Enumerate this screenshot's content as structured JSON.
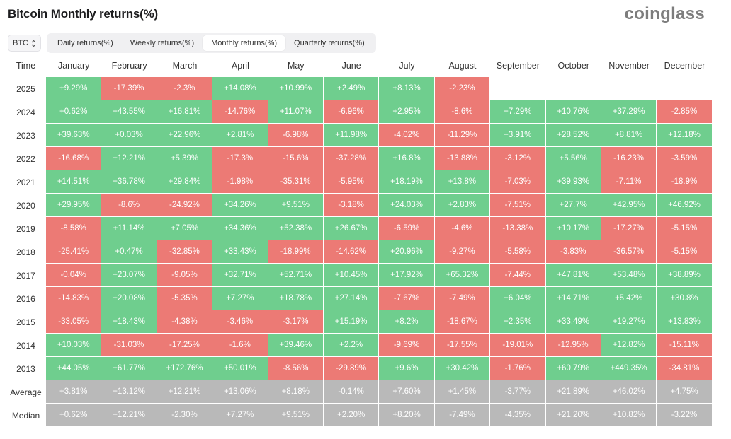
{
  "header": {
    "title": "Bitcoin Monthly returns(%)",
    "brand": "coinglass"
  },
  "asset_select": {
    "value": "BTC",
    "icon": "chevron-updown-icon"
  },
  "tabs": [
    {
      "label": "Daily returns(%)",
      "active": false
    },
    {
      "label": "Weekly returns(%)",
      "active": false
    },
    {
      "label": "Monthly returns(%)",
      "active": true
    },
    {
      "label": "Quarterly returns(%)",
      "active": false
    }
  ],
  "colors": {
    "positive": "#6fce8e",
    "negative": "#ec7a75",
    "stat": "#b9b9b9"
  },
  "table": {
    "corner": "Time",
    "columns": [
      "January",
      "February",
      "March",
      "April",
      "May",
      "June",
      "July",
      "August",
      "September",
      "October",
      "November",
      "December"
    ],
    "rows": [
      {
        "label": "2025",
        "values": [
          "+9.29%",
          "-17.39%",
          "-2.3%",
          "+14.08%",
          "+10.99%",
          "+2.49%",
          "+8.13%",
          "-2.23%",
          "",
          "",
          "",
          ""
        ]
      },
      {
        "label": "2024",
        "values": [
          "+0.62%",
          "+43.55%",
          "+16.81%",
          "-14.76%",
          "+11.07%",
          "-6.96%",
          "+2.95%",
          "-8.6%",
          "+7.29%",
          "+10.76%",
          "+37.29%",
          "-2.85%"
        ]
      },
      {
        "label": "2023",
        "values": [
          "+39.63%",
          "+0.03%",
          "+22.96%",
          "+2.81%",
          "-6.98%",
          "+11.98%",
          "-4.02%",
          "-11.29%",
          "+3.91%",
          "+28.52%",
          "+8.81%",
          "+12.18%"
        ]
      },
      {
        "label": "2022",
        "values": [
          "-16.68%",
          "+12.21%",
          "+5.39%",
          "-17.3%",
          "-15.6%",
          "-37.28%",
          "+16.8%",
          "-13.88%",
          "-3.12%",
          "+5.56%",
          "-16.23%",
          "-3.59%"
        ]
      },
      {
        "label": "2021",
        "values": [
          "+14.51%",
          "+36.78%",
          "+29.84%",
          "-1.98%",
          "-35.31%",
          "-5.95%",
          "+18.19%",
          "+13.8%",
          "-7.03%",
          "+39.93%",
          "-7.11%",
          "-18.9%"
        ]
      },
      {
        "label": "2020",
        "values": [
          "+29.95%",
          "-8.6%",
          "-24.92%",
          "+34.26%",
          "+9.51%",
          "-3.18%",
          "+24.03%",
          "+2.83%",
          "-7.51%",
          "+27.7%",
          "+42.95%",
          "+46.92%"
        ]
      },
      {
        "label": "2019",
        "values": [
          "-8.58%",
          "+11.14%",
          "+7.05%",
          "+34.36%",
          "+52.38%",
          "+26.67%",
          "-6.59%",
          "-4.6%",
          "-13.38%",
          "+10.17%",
          "-17.27%",
          "-5.15%"
        ]
      },
      {
        "label": "2018",
        "values": [
          "-25.41%",
          "+0.47%",
          "-32.85%",
          "+33.43%",
          "-18.99%",
          "-14.62%",
          "+20.96%",
          "-9.27%",
          "-5.58%",
          "-3.83%",
          "-36.57%",
          "-5.15%"
        ]
      },
      {
        "label": "2017",
        "values": [
          "-0.04%",
          "+23.07%",
          "-9.05%",
          "+32.71%",
          "+52.71%",
          "+10.45%",
          "+17.92%",
          "+65.32%",
          "-7.44%",
          "+47.81%",
          "+53.48%",
          "+38.89%"
        ]
      },
      {
        "label": "2016",
        "values": [
          "-14.83%",
          "+20.08%",
          "-5.35%",
          "+7.27%",
          "+18.78%",
          "+27.14%",
          "-7.67%",
          "-7.49%",
          "+6.04%",
          "+14.71%",
          "+5.42%",
          "+30.8%"
        ]
      },
      {
        "label": "2015",
        "values": [
          "-33.05%",
          "+18.43%",
          "-4.38%",
          "-3.46%",
          "-3.17%",
          "+15.19%",
          "+8.2%",
          "-18.67%",
          "+2.35%",
          "+33.49%",
          "+19.27%",
          "+13.83%"
        ]
      },
      {
        "label": "2014",
        "values": [
          "+10.03%",
          "-31.03%",
          "-17.25%",
          "-1.6%",
          "+39.46%",
          "+2.2%",
          "-9.69%",
          "-17.55%",
          "-19.01%",
          "-12.95%",
          "+12.82%",
          "-15.11%"
        ]
      },
      {
        "label": "2013",
        "values": [
          "+44.05%",
          "+61.77%",
          "+172.76%",
          "+50.01%",
          "-8.56%",
          "-29.89%",
          "+9.6%",
          "+30.42%",
          "-1.76%",
          "+60.79%",
          "+449.35%",
          "-34.81%"
        ]
      }
    ],
    "stats": [
      {
        "label": "Average",
        "values": [
          "+3.81%",
          "+13.12%",
          "+12.21%",
          "+13.06%",
          "+8.18%",
          "-0.14%",
          "+7.60%",
          "+1.45%",
          "-3.77%",
          "+21.89%",
          "+46.02%",
          "+4.75%"
        ]
      },
      {
        "label": "Median",
        "values": [
          "+0.62%",
          "+12.21%",
          "-2.30%",
          "+7.27%",
          "+9.51%",
          "+2.20%",
          "+8.20%",
          "-7.49%",
          "-4.35%",
          "+21.20%",
          "+10.82%",
          "-3.22%"
        ]
      }
    ]
  }
}
